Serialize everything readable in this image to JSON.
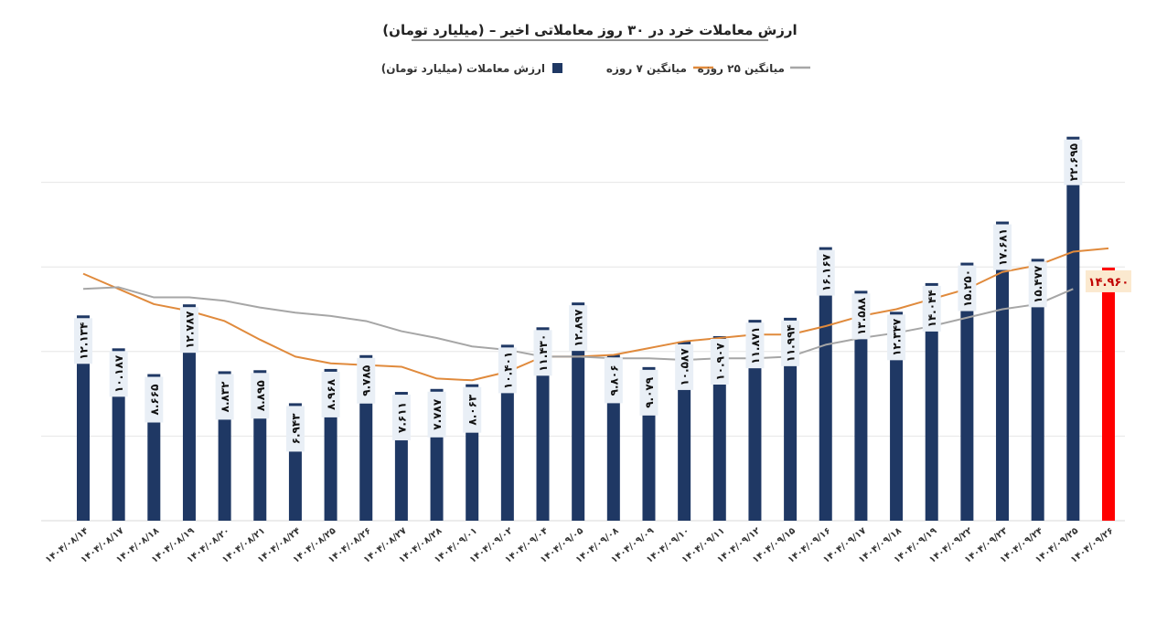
{
  "chart_data": {
    "type": "bar",
    "title": "ارزش معاملات خرد در ۳۰ روز معاملاتی اخیر – (میلیارد تومان)",
    "legend": [
      {
        "name": "ارزش معاملات (میلیارد تومان)",
        "kind": "bar",
        "color": "#1f3864"
      },
      {
        "name": "میانگین ۷ روزه",
        "kind": "line",
        "color": "#e08a3c"
      },
      {
        "name": "میانگین ۲۵ روزه",
        "kind": "line",
        "color": "#a6a6a6"
      }
    ],
    "legend_position": "top",
    "categories": [
      "۱۴۰۴/۰۸/۱۴",
      "۱۴۰۴/۰۸/۱۷",
      "۱۴۰۴/۰۸/۱۸",
      "۱۴۰۴/۰۸/۱۹",
      "۱۴۰۴/۰۸/۲۰",
      "۱۴۰۴/۰۸/۲۱",
      "۱۴۰۴/۰۸/۲۴",
      "۱۴۰۴/۰۸/۲۵",
      "۱۴۰۴/۰۸/۲۶",
      "۱۴۰۴/۰۸/۲۷",
      "۱۴۰۴/۰۸/۲۸",
      "۱۴۰۴/۰۹/۰۱",
      "۱۴۰۴/۰۹/۰۲",
      "۱۴۰۴/۰۹/۰۴",
      "۱۴۰۴/۰۹/۰۵",
      "۱۴۰۴/۰۹/۰۸",
      "۱۴۰۴/۰۹/۰۹",
      "۱۴۰۴/۰۹/۱۰",
      "۱۴۰۴/۰۹/۱۱",
      "۱۴۰۴/۰۹/۱۲",
      "۱۴۰۴/۰۹/۱۵",
      "۱۴۰۴/۰۹/۱۶",
      "۱۴۰۴/۰۹/۱۷",
      "۱۴۰۴/۰۹/۱۸",
      "۱۴۰۴/۰۹/۱۹",
      "۱۴۰۴/۰۹/۲۲",
      "۱۴۰۴/۰۹/۲۳",
      "۱۴۰۴/۰۹/۲۴",
      "۱۴۰۴/۰۹/۲۵",
      "۱۴۰۴/۰۹/۲۶"
    ],
    "series": [
      {
        "name": "ارزش معاملات (میلیارد تومان)",
        "values": [
          12.134,
          10.187,
          8.665,
          12.787,
          8.832,
          8.895,
          6.943,
          8.968,
          9.785,
          7.611,
          7.787,
          8.063,
          10.401,
          11.43,
          12.897,
          9.806,
          9.079,
          10.587,
          10.907,
          11.871,
          11.994,
          16.167,
          13.588,
          12.347,
          14.044,
          15.25,
          17.681,
          15.477,
          22.695,
          14.96
        ]
      },
      {
        "name": "میانگین ۷ روزه",
        "values": [
          14.6,
          13.7,
          12.8,
          12.4,
          11.8,
          10.7,
          9.7,
          9.3,
          9.2,
          9.1,
          8.4,
          8.3,
          8.8,
          9.7,
          9.7,
          9.8,
          10.2,
          10.6,
          10.8,
          11.0,
          11.0,
          11.5,
          12.1,
          12.5,
          13.1,
          13.7,
          14.7,
          15.1,
          15.9,
          16.1
        ]
      },
      {
        "name": "میانگین ۲۵ روزه",
        "values": [
          13.7,
          13.8,
          13.2,
          13.2,
          13.0,
          12.6,
          12.3,
          12.1,
          11.8,
          11.2,
          10.8,
          10.3,
          10.1,
          9.7,
          9.7,
          9.6,
          9.6,
          9.5,
          9.6,
          9.6,
          9.7,
          10.4,
          10.8,
          11.1,
          11.5,
          12.0,
          12.5,
          12.8,
          13.7,
          13.8
        ]
      }
    ],
    "highlight": {
      "index": 29,
      "color": "#ff0000",
      "label_color": "#c00000"
    },
    "ylim": [
      0,
      25
    ],
    "gridlines": [
      5,
      10,
      15,
      20
    ],
    "grid": true,
    "y_tick_labels_shown": false
  }
}
